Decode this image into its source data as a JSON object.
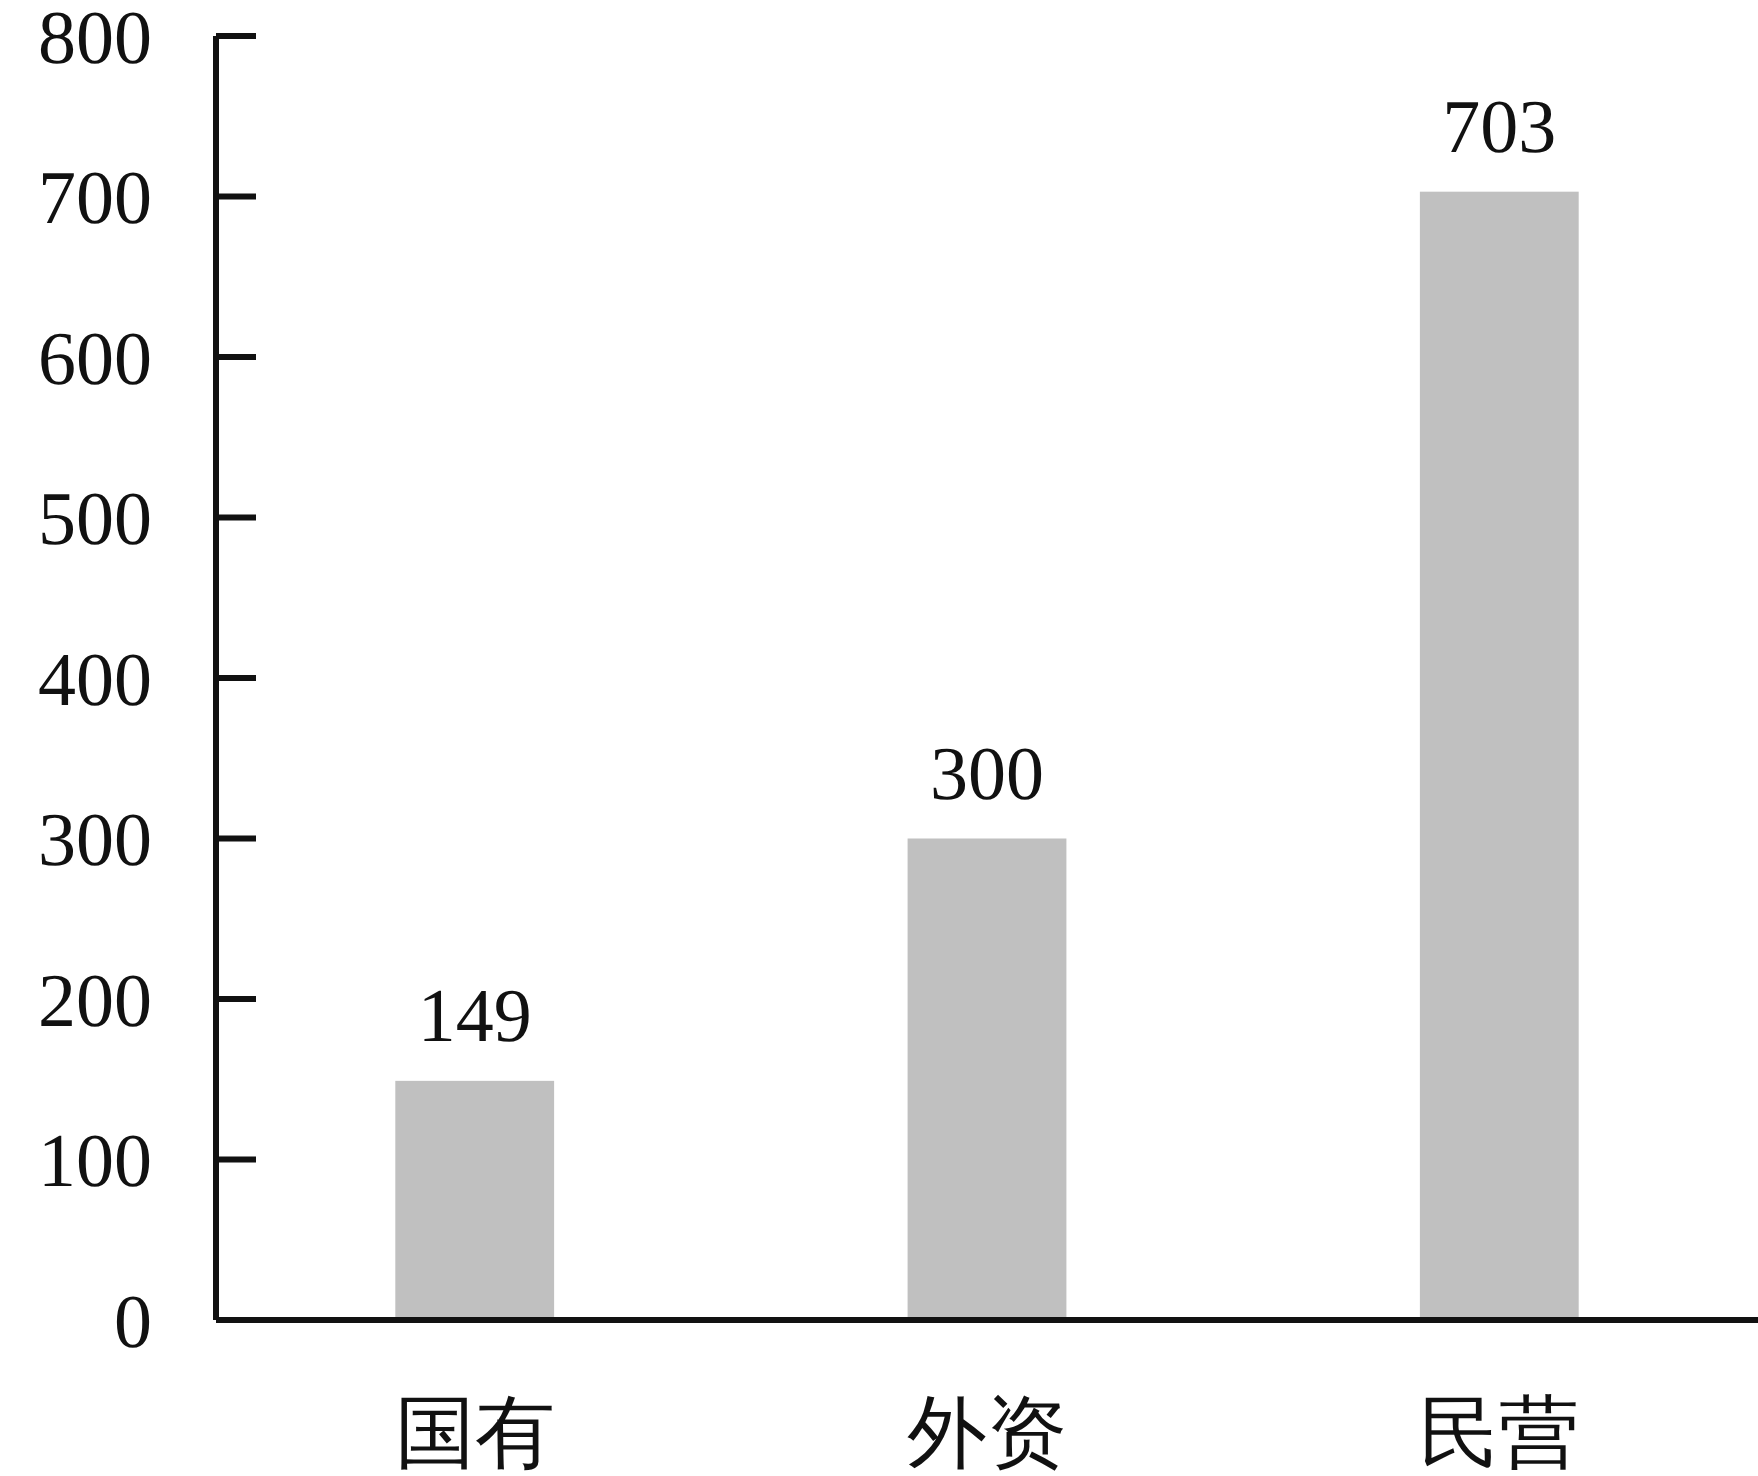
{
  "chart_data": {
    "type": "bar",
    "categories": [
      "国有",
      "外资",
      "民营"
    ],
    "values": [
      149,
      300,
      703
    ],
    "color": "#c0c0c0",
    "ylim": [
      0,
      800
    ],
    "yticks": [
      0,
      100,
      200,
      300,
      400,
      500,
      600,
      700,
      800
    ],
    "data_labels": true,
    "grid": false
  }
}
